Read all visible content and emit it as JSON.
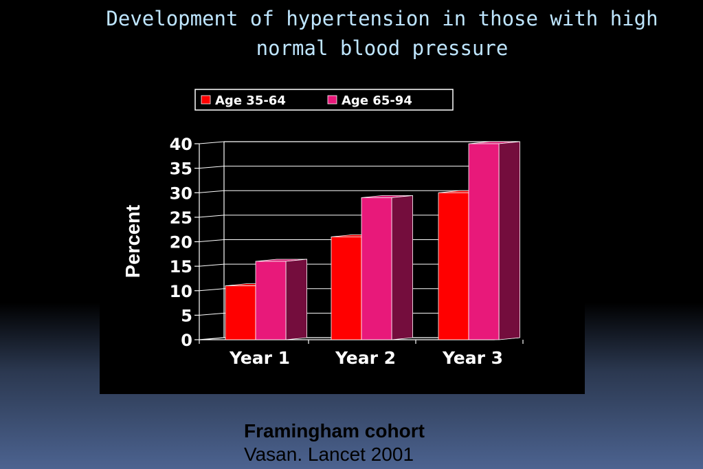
{
  "slide": {
    "title": "Development of hypertension in those with high normal blood pressure",
    "source_cohort": "Framingham cohort",
    "source_citation": "Vasan. Lancet 2001"
  },
  "colors": {
    "title_text": "#bfe6ff",
    "series_1": "#ff0000",
    "series_2": "#e8197a",
    "chart_text": "#ffffff"
  },
  "chart_data": {
    "type": "bar",
    "style": "3d-clustered-column",
    "categories": [
      "Year 1",
      "Year 2",
      "Year 3"
    ],
    "series": [
      {
        "name": "Age 35-64",
        "values": [
          11,
          21,
          30
        ]
      },
      {
        "name": "Age 65-94",
        "values": [
          16,
          29,
          40
        ]
      }
    ],
    "ylabel": "Percent",
    "xlabel": "",
    "ylim": [
      0,
      40
    ],
    "yticks": [
      "0",
      "5",
      "10",
      "15",
      "20",
      "25",
      "30",
      "35",
      "40"
    ],
    "grid": true,
    "legend_position": "top"
  }
}
